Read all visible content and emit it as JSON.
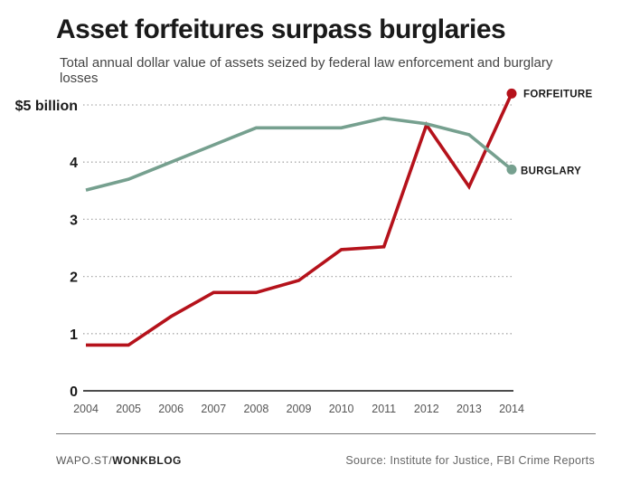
{
  "header": {
    "title": "Asset forfeitures surpass burglaries",
    "subtitle": "Total annual dollar value of assets seized by federal law enforcement and burglary losses"
  },
  "footer": {
    "credit_prefix": "WAPO.ST/",
    "credit_brand": "WONKBLOG",
    "source": "Source: Institute for Justice, FBI Crime Reports"
  },
  "colors": {
    "forfeiture": "#b5121b",
    "burglary": "#76a08f",
    "grid": "#aaaaaa",
    "axis": "#111111"
  },
  "chart_data": {
    "type": "line",
    "x": [
      2004,
      2005,
      2006,
      2007,
      2008,
      2009,
      2010,
      2011,
      2012,
      2013,
      2014
    ],
    "ylim": [
      0,
      5
    ],
    "yticks": [
      0,
      1,
      2,
      3,
      4,
      5
    ],
    "ytick_labels": [
      "0",
      "1",
      "2",
      "3",
      "4",
      "$5 billion"
    ],
    "xtick_labels": [
      "2004",
      "2005",
      "2006",
      "2007",
      "2008",
      "2009",
      "2010",
      "2011",
      "2012",
      "2013",
      "2014"
    ],
    "series": [
      {
        "name": "FORFEITURE",
        "values": [
          0.8,
          0.8,
          1.3,
          1.72,
          1.72,
          1.93,
          2.47,
          2.52,
          4.65,
          3.57,
          5.2
        ]
      },
      {
        "name": "BURGLARY",
        "values": [
          3.51,
          3.7,
          4.0,
          4.3,
          4.6,
          4.6,
          4.6,
          4.77,
          4.67,
          4.48,
          3.87
        ]
      }
    ]
  }
}
